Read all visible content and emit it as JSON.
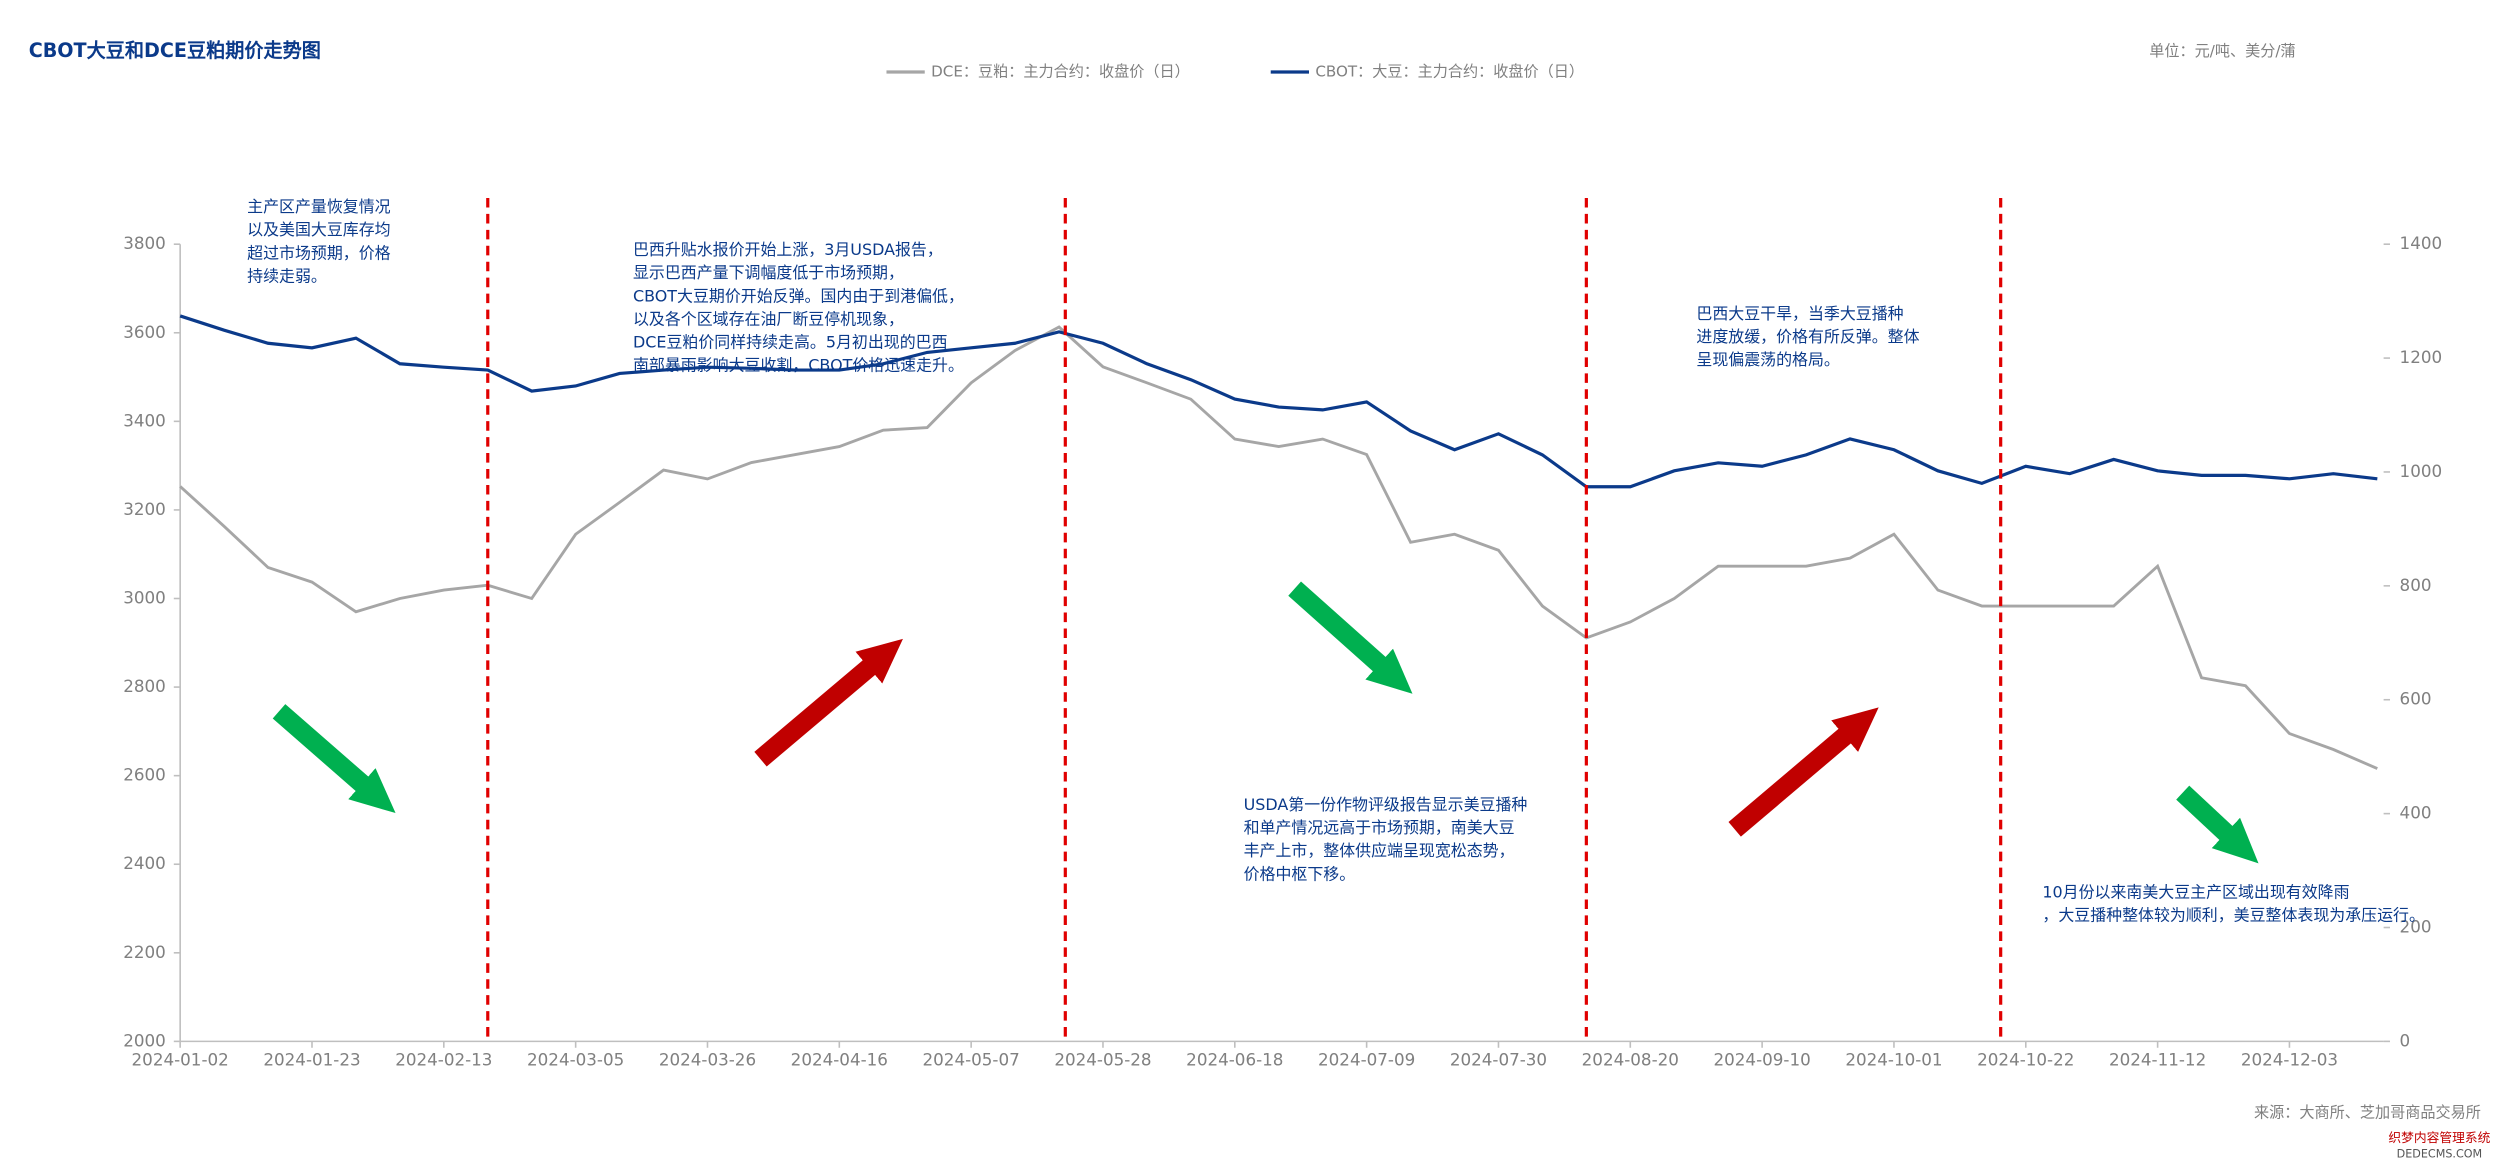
{
  "chart_data": {
    "type": "line",
    "title": "CBOT大豆和DCE豆粕期价走势图",
    "unit_note": "单位：元/吨、美分/蒲",
    "source": "来源：大商所、芝加哥商品交易所",
    "watermark": [
      "织梦内容管理系统",
      "DEDECMS.COM"
    ],
    "x": [
      "2024-01-02",
      "2024-01-09",
      "2024-01-16",
      "2024-01-23",
      "2024-01-30",
      "2024-02-06",
      "2024-02-13",
      "2024-02-20",
      "2024-02-27",
      "2024-03-05",
      "2024-03-12",
      "2024-03-19",
      "2024-03-26",
      "2024-04-02",
      "2024-04-09",
      "2024-04-16",
      "2024-04-23",
      "2024-04-30",
      "2024-05-07",
      "2024-05-14",
      "2024-05-21",
      "2024-05-28",
      "2024-06-04",
      "2024-06-11",
      "2024-06-18",
      "2024-06-25",
      "2024-07-02",
      "2024-07-09",
      "2024-07-16",
      "2024-07-23",
      "2024-07-30",
      "2024-08-06",
      "2024-08-13",
      "2024-08-20",
      "2024-08-27",
      "2024-09-03",
      "2024-09-10",
      "2024-09-17",
      "2024-09-24",
      "2024-10-01",
      "2024-10-08",
      "2024-10-15",
      "2024-10-22",
      "2024-10-29",
      "2024-11-05",
      "2024-11-12",
      "2024-11-19",
      "2024-11-26",
      "2024-12-03",
      "2024-12-10",
      "2024-12-17"
    ],
    "xlim": [
      "2024-01-02",
      "2024-12-18"
    ],
    "xticks": [
      "2024-01-02",
      "2024-01-23",
      "2024-02-13",
      "2024-03-05",
      "2024-03-26",
      "2024-04-16",
      "2024-05-07",
      "2024-05-28",
      "2024-06-18",
      "2024-07-09",
      "2024-07-30",
      "2024-08-20",
      "2024-09-10",
      "2024-10-01",
      "2024-10-22",
      "2024-11-12",
      "2024-12-03"
    ],
    "ylim": [
      2000,
      3800
    ],
    "yticks": [
      2000,
      2200,
      2400,
      2600,
      2800,
      3000,
      3200,
      3400,
      3600,
      3800
    ],
    "y2lim": [
      0,
      1400
    ],
    "y2ticks": [
      0,
      200,
      400,
      600,
      800,
      1000,
      1200,
      1400
    ],
    "series": [
      {
        "name": "DCE：豆粕：主力合约：收盘价（日）",
        "color": "#a6a6a6",
        "values": [
          3253,
          3163,
          3070,
          3037,
          2970,
          3000,
          3019,
          3030,
          3000,
          3145,
          3217,
          3290,
          3270,
          3307,
          3325,
          3343,
          3380,
          3386,
          3487,
          3560,
          3613,
          3523,
          3487,
          3450,
          3360,
          3343,
          3360,
          3325,
          3127,
          3145,
          3109,
          2983,
          2911,
          2947,
          3000,
          3073,
          3073,
          3073,
          3091,
          3145,
          3019,
          2983,
          2983,
          2983,
          2983,
          3073,
          2821,
          2803,
          2695,
          2659,
          2616
        ]
      },
      {
        "name": "CBOT：大豆：主力合约：收盘价（日）",
        "color": "#0b3a8a",
        "axis": "y2",
        "values": [
          1274,
          1249,
          1226,
          1218,
          1235,
          1190,
          1184,
          1179,
          1142,
          1151,
          1173,
          1179,
          1184,
          1182,
          1179,
          1179,
          1190,
          1210,
          1218,
          1226,
          1246,
          1226,
          1190,
          1162,
          1128,
          1114,
          1109,
          1123,
          1072,
          1039,
          1067,
          1030,
          974,
          974,
          1002,
          1016,
          1010,
          1030,
          1058,
          1039,
          1002,
          980,
          1010,
          997,
          1022,
          1002,
          994,
          994,
          988,
          997,
          988
        ]
      }
    ],
    "event_lines": {
      "color": "#e00000",
      "dates": [
        "2024-02-20",
        "2024-05-22",
        "2024-08-13",
        "2024-10-18"
      ]
    },
    "annotations": [
      {
        "lines": [
          "主产区产量恢复情况",
          "以及美国大豆库存均",
          "超过市场预期，价格",
          "持续走弱。"
        ]
      },
      {
        "lines": [
          "巴西升贴水报价开始上涨，3月USDA报告，",
          "显示巴西产量下调幅度低于市场预期，",
          "CBOT大豆期价开始反弹。国内由于到港偏低，",
          "以及各个区域存在油厂断豆停机现象，",
          "DCE豆粕价同样持续走高。5月初出现的巴西",
          "南部暴雨影响大豆收割，CBOT价格迅速走升。"
        ]
      },
      {
        "lines": [
          "USDA第一份作物评级报告显示美豆播种",
          "和单产情况远高于市场预期，南美大豆",
          "丰产上市，整体供应端呈现宽松态势，",
          "价格中枢下移。"
        ]
      },
      {
        "lines": [
          "巴西大豆干旱，当季大豆播种",
          "进度放缓，价格有所反弹。整体",
          "呈现偏震荡的格局。"
        ]
      },
      {
        "lines": [
          "10月份以来南美大豆主产区域出现有效降雨",
          "，大豆播种整体较为顺利，美豆整体表现为承压运行。"
        ]
      }
    ]
  }
}
